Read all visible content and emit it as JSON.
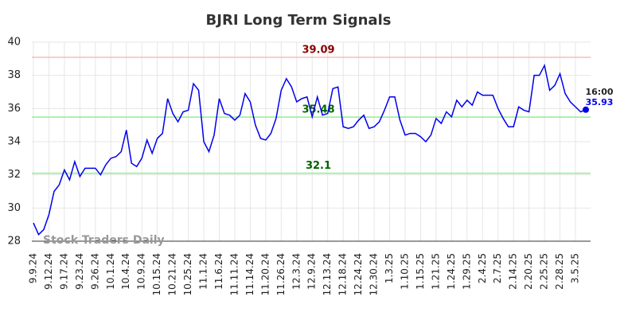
{
  "chart_data": {
    "type": "line",
    "title": "BJRI Long Term Signals",
    "watermark": "Stock Traders Daily",
    "categories": [
      "9.9.24",
      null,
      null,
      "9.12.24",
      null,
      null,
      "9.17.24",
      null,
      null,
      "9.23.24",
      null,
      null,
      "9.26.24",
      null,
      null,
      "10.1.24",
      null,
      null,
      "10.4.24",
      null,
      null,
      "10.9.24",
      null,
      null,
      "10.15.24",
      null,
      null,
      "10.21.24",
      null,
      null,
      "10.25.24",
      null,
      null,
      "11.1.24",
      null,
      null,
      "11.6.24",
      null,
      null,
      "11.11.24",
      null,
      null,
      "11.14.24",
      null,
      null,
      "11.20.24",
      null,
      null,
      "11.26.24",
      null,
      null,
      "12.3.24",
      null,
      null,
      "12.9.24",
      null,
      null,
      "12.13.24",
      null,
      null,
      "12.18.24",
      null,
      null,
      "12.24.24",
      null,
      null,
      "12.30.24",
      null,
      null,
      "1.3.25",
      null,
      null,
      "1.10.25",
      null,
      null,
      "1.15.25",
      null,
      null,
      "1.21.25",
      null,
      null,
      "1.24.25",
      null,
      null,
      "1.29.25",
      null,
      null,
      "2.4.25",
      null,
      null,
      "2.7.25",
      null,
      null,
      "2.14.25",
      null,
      null,
      "2.20.25",
      null,
      null,
      "2.25.25",
      null,
      null,
      "2.28.25",
      null,
      null,
      "3.5.25",
      null,
      null
    ],
    "values": [
      29.1,
      28.4,
      28.7,
      29.6,
      31.0,
      31.4,
      32.3,
      31.7,
      32.8,
      31.9,
      32.4,
      32.4,
      32.4,
      32.0,
      32.6,
      33.0,
      33.1,
      33.4,
      34.7,
      32.7,
      32.5,
      33.0,
      34.1,
      33.3,
      34.2,
      34.5,
      36.6,
      35.7,
      35.2,
      35.8,
      35.9,
      37.5,
      37.1,
      34.0,
      33.4,
      34.4,
      36.6,
      35.7,
      35.6,
      35.3,
      35.6,
      36.9,
      36.4,
      35.0,
      34.2,
      34.1,
      34.5,
      35.4,
      37.1,
      37.8,
      37.3,
      36.4,
      36.6,
      36.7,
      35.5,
      36.7,
      35.6,
      35.7,
      37.2,
      37.3,
      34.9,
      34.8,
      34.9,
      35.3,
      35.6,
      34.8,
      34.9,
      35.2,
      35.9,
      36.7,
      36.7,
      35.3,
      34.4,
      34.5,
      34.5,
      34.3,
      34.0,
      34.4,
      35.4,
      35.1,
      35.8,
      35.5,
      36.5,
      36.1,
      36.5,
      36.2,
      37.0,
      36.8,
      36.8,
      36.8,
      36.0,
      35.4,
      34.9,
      34.9,
      36.1,
      35.9,
      35.8,
      38.0,
      38.0,
      38.6,
      37.1,
      37.4,
      38.1,
      36.9,
      36.4,
      36.1,
      35.8,
      35.93
    ],
    "color": "#0000ee",
    "last_label": "16:00",
    "hlines": [
      {
        "value": 39.09,
        "color": "#ffbbbb",
        "label_color": "#8b0000"
      },
      {
        "value": 35.48,
        "color": "#90ee90",
        "label_color": "#006400"
      },
      {
        "value": 32.1,
        "color": "#90ee90",
        "label_color": "#006400"
      }
    ],
    "ylim": [
      28,
      40
    ],
    "yticks": [
      28,
      30,
      32,
      34,
      36,
      38,
      40
    ],
    "grid": true
  }
}
